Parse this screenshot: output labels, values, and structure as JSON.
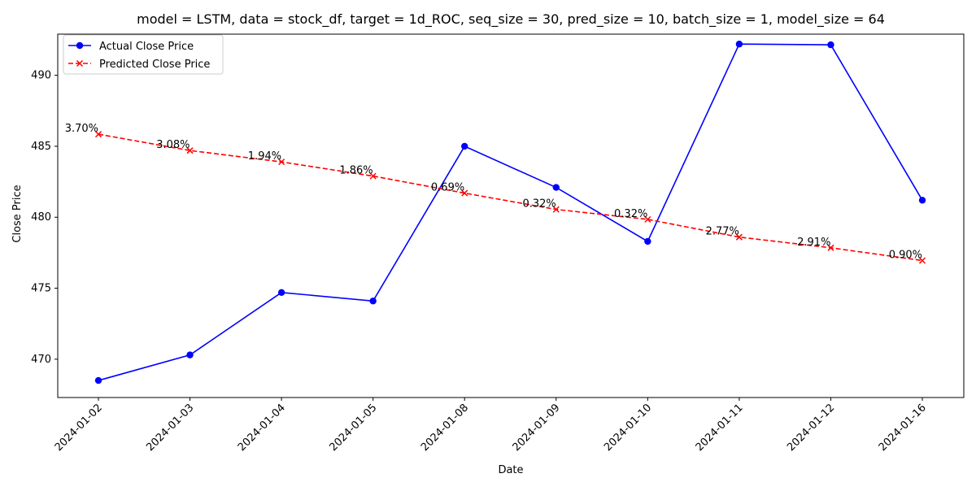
{
  "chart_data": {
    "type": "line",
    "title": "model = LSTM, data = stock_df, target = 1d_ROC, seq_size = 30, pred_size = 10, batch_size = 1, model_size = 64",
    "xlabel": "Date",
    "ylabel": "Close Price",
    "categories": [
      "2024-01-02",
      "2024-01-03",
      "2024-01-04",
      "2024-01-05",
      "2024-01-08",
      "2024-01-09",
      "2024-01-10",
      "2024-01-11",
      "2024-01-12",
      "2024-01-16"
    ],
    "ylim": [
      467.3,
      492.9
    ],
    "yticks": [
      470,
      475,
      480,
      485,
      490
    ],
    "grid": false,
    "legend_position": "upper-left",
    "series": [
      {
        "name": "Actual Close Price",
        "color": "#0000ff",
        "line_style": "solid",
        "marker": "circle",
        "values": [
          468.5,
          470.3,
          474.7,
          474.1,
          485.0,
          482.1,
          478.3,
          492.2,
          492.15,
          481.2
        ]
      },
      {
        "name": "Predicted Close Price",
        "color": "#ff0000",
        "line_style": "dashed",
        "marker": "x",
        "values": [
          485.85,
          484.7,
          483.9,
          482.9,
          481.7,
          480.55,
          479.85,
          478.6,
          477.85,
          476.95
        ],
        "point_labels": [
          "3.70%",
          "3.08%",
          "1.94%",
          "1.86%",
          "0.69%",
          "0.32%",
          "0.32%",
          "2.77%",
          "2.91%",
          "0.90%"
        ]
      }
    ]
  }
}
